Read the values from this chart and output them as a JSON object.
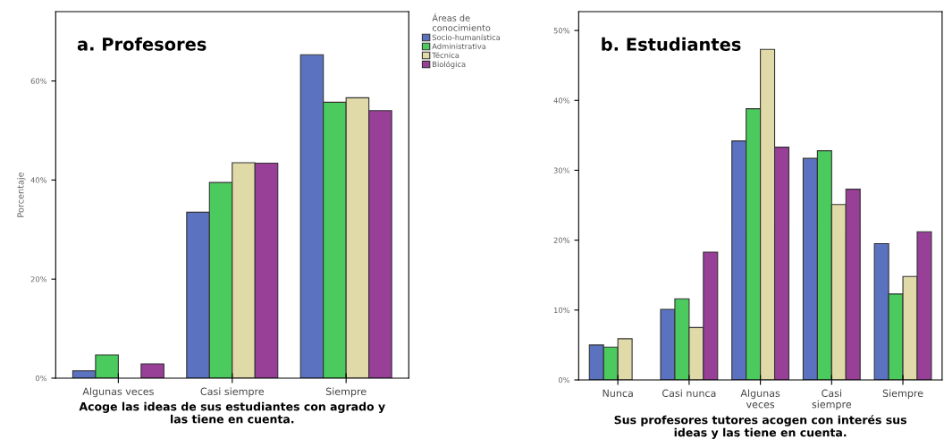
{
  "chart_data": [
    {
      "type": "bar",
      "title": "a. Profesores",
      "xlabel": "Acoge las ideas de sus estudiantes con agrado y\nlas tiene en cuenta.",
      "ylabel": "Porcentaje",
      "legend_title": "Áreas de\nconocimiento",
      "legend": "right",
      "categories": [
        "Algunas veces",
        "Casi siempre",
        "Siempre"
      ],
      "ylim": [
        0,
        74
      ],
      "yticks": [
        {
          "value": 0,
          "label": "0%"
        },
        {
          "value": 20,
          "label": "20%"
        },
        {
          "value": 40,
          "label": "40%"
        },
        {
          "value": 60,
          "label": "60%"
        }
      ],
      "grid": false,
      "series": [
        {
          "name": "Socio-humanística",
          "color": "#5b72c0",
          "values": [
            1.5,
            33.5,
            65.3
          ]
        },
        {
          "name": "Administrativa",
          "color": "#4bcb5e",
          "values": [
            4.7,
            39.5,
            55.7
          ]
        },
        {
          "name": "Técnica",
          "color": "#e0d9a8",
          "values": [
            null,
            43.5,
            56.6
          ]
        },
        {
          "name": "Biológica",
          "color": "#983f98",
          "values": [
            2.9,
            43.4,
            54.0
          ]
        }
      ]
    },
    {
      "type": "bar",
      "title": "b. Estudiantes",
      "xlabel": "Sus profesores tutores acogen con interés sus\nideas y las tiene en cuenta.",
      "categories": [
        "Nunca",
        "Casi nunca",
        "Algunas\nveces",
        "Casi\nsiempre",
        "Siempre"
      ],
      "ylim": [
        0,
        52.7
      ],
      "yticks": [
        {
          "value": 0,
          "label": "0%"
        },
        {
          "value": 10,
          "label": "10%"
        },
        {
          "value": 20,
          "label": "20%"
        },
        {
          "value": 30,
          "label": "30%"
        },
        {
          "value": 40,
          "label": "40%"
        },
        {
          "value": 50,
          "label": "50%"
        }
      ],
      "grid": false,
      "series": [
        {
          "color": "#5b72c0",
          "values": [
            5.0,
            10.1,
            34.2,
            31.7,
            19.5
          ]
        },
        {
          "color": "#4bcb5e",
          "values": [
            4.7,
            11.6,
            38.8,
            32.8,
            12.3
          ]
        },
        {
          "color": "#e0d9a8",
          "values": [
            5.9,
            7.5,
            47.3,
            25.1,
            14.8
          ]
        },
        {
          "color": "#983f98",
          "values": [
            null,
            18.3,
            33.3,
            27.3,
            21.2
          ]
        }
      ]
    }
  ]
}
